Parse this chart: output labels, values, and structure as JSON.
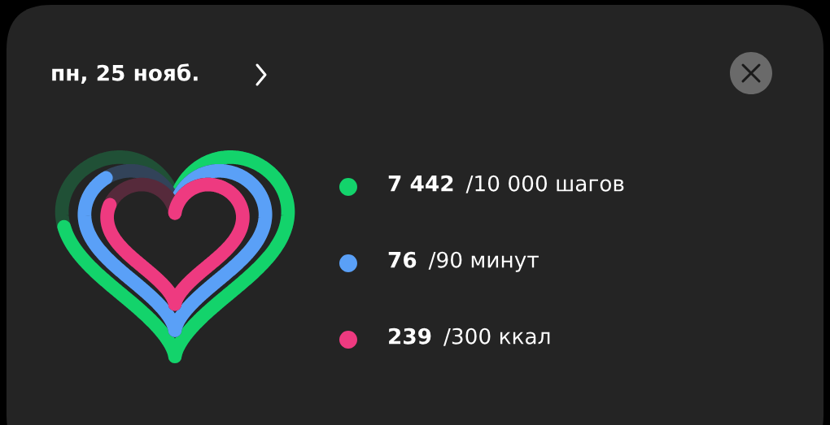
{
  "chart_data": {
    "type": "other",
    "title": "пн, 25 нояб.",
    "categories": [
      "шагов",
      "минут",
      "ккал"
    ],
    "colors": [
      "#13d36b",
      "#5aa0f7",
      "#ee3a80"
    ],
    "series": [
      {
        "values": [
          7442,
          76,
          239
        ],
        "value_labels": [
          "7 442",
          "76",
          "239"
        ]
      },
      {
        "values": [
          10000,
          90,
          300
        ],
        "value_labels": [
          "/10 000",
          "/90",
          "/300"
        ]
      }
    ]
  }
}
